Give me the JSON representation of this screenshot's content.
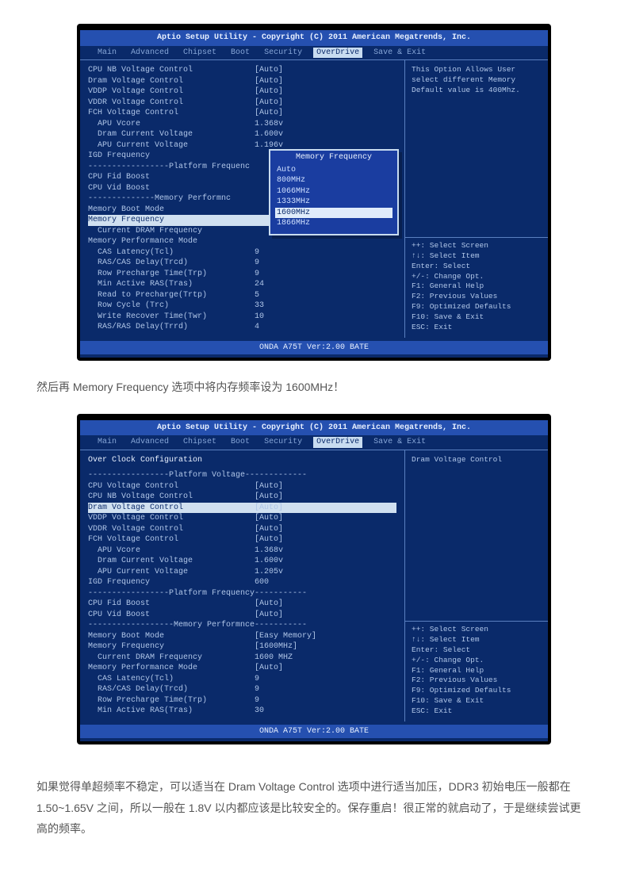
{
  "caption1": "然后再 Memory Frequency 选项中将内存频率设为 1600MHz！",
  "caption2": "如果觉得单超频率不稳定，可以适当在 Dram Voltage Control 选项中进行适当加压，DDR3 初始电压一般都在 1.50~1.65V 之间，所以一般在 1.8V 以内都应该是比较安全的。保存重启！很正常的就启动了，于是继续尝试更高的频率。",
  "bios": {
    "title": "Aptio Setup Utility - Copyright (C) 2011 American Megatrends, Inc.",
    "menu": [
      "Main",
      "Advanced",
      "Chipset",
      "Boot",
      "Security",
      "OverDrive",
      "Save & Exit"
    ],
    "active_menu": 5,
    "footer": "ONDA A75T Ver:2.00 BATE",
    "help_lines": [
      "++: Select Screen",
      "↑↓: Select Item",
      "Enter: Select",
      "+/-: Change Opt.",
      "F1: General Help",
      "F2: Previous Values",
      "F9: Optimized Defaults",
      "F10: Save & Exit",
      "ESC: Exit"
    ]
  },
  "screenA": {
    "right_top": [
      "This Option Allows User",
      "select different Memory",
      "Default value is 400Mhz."
    ],
    "rows": [
      {
        "l": "CPU NB Voltage Control",
        "v": "[Auto]"
      },
      {
        "l": "Dram Voltage Control",
        "v": "[Auto]"
      },
      {
        "l": "VDDP Voltage Control",
        "v": "[Auto]"
      },
      {
        "l": "VDDR Voltage Control",
        "v": "[Auto]"
      },
      {
        "l": "FCH Voltage Control",
        "v": "[Auto]"
      },
      {
        "l": "  APU Vcore",
        "v": "1.368v"
      },
      {
        "l": "  Dram Current Voltage",
        "v": "1.600v"
      },
      {
        "l": "  APU Current Voltage",
        "v": "1.196v"
      },
      {
        "l": "IGD Frequency",
        "v": ""
      },
      {
        "l": "-----------------Platform Frequenc",
        "dash": true
      },
      {
        "l": "CPU Fid Boost",
        "v": ""
      },
      {
        "l": "CPU Vid Boost",
        "v": ""
      },
      {
        "l": "--------------Memory Performnc",
        "dash": true
      },
      {
        "l": "Memory Boot Mode",
        "v": ""
      },
      {
        "l": "Memory Frequency",
        "v": "",
        "hl": true
      },
      {
        "l": "  Current DRAM Frequency",
        "v": ""
      },
      {
        "l": "Memory Performance Mode",
        "v": ""
      },
      {
        "l": "  CAS Latency(Tcl)",
        "v": "9"
      },
      {
        "l": "  RAS/CAS Delay(Trcd)",
        "v": "9"
      },
      {
        "l": "  Row Precharge Time(Trp)",
        "v": "9"
      },
      {
        "l": "  Min Active RAS(Tras)",
        "v": "24"
      },
      {
        "l": "  Read to Precharge(Trtp)",
        "v": "5"
      },
      {
        "l": "  Row Cycle (Trc)",
        "v": "33"
      },
      {
        "l": "  Write Recover Time(Twr)",
        "v": "10"
      },
      {
        "l": "  RAS/RAS Delay(Trrd)",
        "v": "4"
      }
    ],
    "popup": {
      "title": "Memory Frequency",
      "options": [
        "Auto",
        "800MHz",
        "1066MHz",
        "1333MHz",
        "1600MHz",
        "1866MHz"
      ],
      "selected": 4
    }
  },
  "screenB": {
    "right_top": [
      "Dram Voltage Control"
    ],
    "header": "Over Clock Configuration",
    "rows": [
      {
        "l": "-----------------Platform Voltage-------------",
        "dash": true
      },
      {
        "l": "CPU Voltage Control",
        "v": "[Auto]"
      },
      {
        "l": "CPU NB Voltage Control",
        "v": "[Auto]"
      },
      {
        "l": "Dram Voltage Control",
        "v": "[Auto]",
        "hl": true
      },
      {
        "l": "VDDP Voltage Control",
        "v": "[Auto]"
      },
      {
        "l": "VDDR Voltage Control",
        "v": "[Auto]"
      },
      {
        "l": "FCH Voltage Control",
        "v": "[Auto]"
      },
      {
        "l": "  APU Vcore",
        "v": "1.368v"
      },
      {
        "l": "  Dram Current Voltage",
        "v": "1.600v"
      },
      {
        "l": "  APU Current Voltage",
        "v": "1.205v"
      },
      {
        "l": "IGD Frequency",
        "v": "600"
      },
      {
        "l": "-----------------Platform Frequency-----------",
        "dash": true
      },
      {
        "l": "CPU Fid Boost",
        "v": "[Auto]"
      },
      {
        "l": "CPU Vid Boost",
        "v": "[Auto]"
      },
      {
        "l": "------------------Memory Performnce-----------",
        "dash": true
      },
      {
        "l": "Memory Boot Mode",
        "v": "[Easy Memory]"
      },
      {
        "l": "Memory Frequency",
        "v": "[1600MHz]"
      },
      {
        "l": "  Current DRAM Frequency",
        "v": "1600 MHZ"
      },
      {
        "l": "Memory Performance Mode",
        "v": "[Auto]"
      },
      {
        "l": "  CAS Latency(Tcl)",
        "v": "9"
      },
      {
        "l": "  RAS/CAS Delay(Trcd)",
        "v": "9"
      },
      {
        "l": "  Row Precharge Time(Trp)",
        "v": "9"
      },
      {
        "l": "  Min Active RAS(Tras)",
        "v": "30"
      }
    ]
  }
}
